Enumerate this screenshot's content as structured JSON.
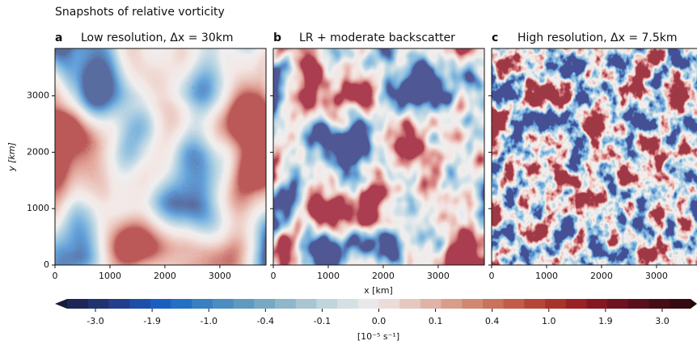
{
  "title": "Snapshots of relative vorticity",
  "xlabel": "x [km]",
  "ylabel": "y [km]",
  "chart_data": [
    {
      "type": "heatmap",
      "panel": "a",
      "title": "Low resolution, Δx = 30km",
      "xlim": [
        0,
        3840
      ],
      "ylim": [
        0,
        3840
      ],
      "xticks": [
        0,
        1000,
        2000,
        3000
      ],
      "yticks": [
        0,
        1000,
        2000,
        3000
      ],
      "ytick_labels": true
    },
    {
      "type": "heatmap",
      "panel": "b",
      "title": "LR + moderate backscatter",
      "xlim": [
        0,
        3840
      ],
      "ylim": [
        0,
        3840
      ],
      "xticks": [
        0,
        1000,
        2000,
        3000
      ],
      "yticks": [
        0,
        1000,
        2000,
        3000
      ],
      "ytick_labels": false
    },
    {
      "type": "heatmap",
      "panel": "c",
      "title": "High resolution, Δx = 7.5km",
      "xlim": [
        0,
        3840
      ],
      "ylim": [
        0,
        3840
      ],
      "xticks": [
        0,
        1000,
        2000,
        3000
      ],
      "yticks": [
        0,
        1000,
        2000,
        3000
      ],
      "ytick_labels": false
    }
  ],
  "colorbar": {
    "label": "[10⁻⁵ s⁻¹]",
    "ticks": [
      {
        "value": -3,
        "label": "-3.0"
      },
      {
        "value": -1.9,
        "label": "-1.9"
      },
      {
        "value": -1,
        "label": "-1.0"
      },
      {
        "value": -0.4,
        "label": "-0.4"
      },
      {
        "value": -0.1,
        "label": "-0.1"
      },
      {
        "value": 0,
        "label": "0.0"
      },
      {
        "value": 0.1,
        "label": "0.1"
      },
      {
        "value": 0.4,
        "label": "0.4"
      },
      {
        "value": 1,
        "label": "1.0"
      },
      {
        "value": 1.9,
        "label": "1.9"
      },
      {
        "value": 3,
        "label": "3.0"
      }
    ],
    "colors": [
      "#141c3a",
      "#1c2755",
      "#213271",
      "#233e8c",
      "#1f4ea8",
      "#1a5fbf",
      "#2470c4",
      "#3880c2",
      "#4b8dc0",
      "#5f9ac0",
      "#77a9c4",
      "#8fb7c9",
      "#a8c6d1",
      "#c0d5dc",
      "#d6e0e4",
      "#e8e8e8",
      "#ecdcd8",
      "#e6c8c0",
      "#dfb3a6",
      "#d89e8c",
      "#d18873",
      "#c9725c",
      "#c05c48",
      "#b54637",
      "#a8332b",
      "#982226",
      "#841723",
      "#6e1220",
      "#590f1b",
      "#450d16",
      "#330b10",
      "#220808"
    ]
  }
}
